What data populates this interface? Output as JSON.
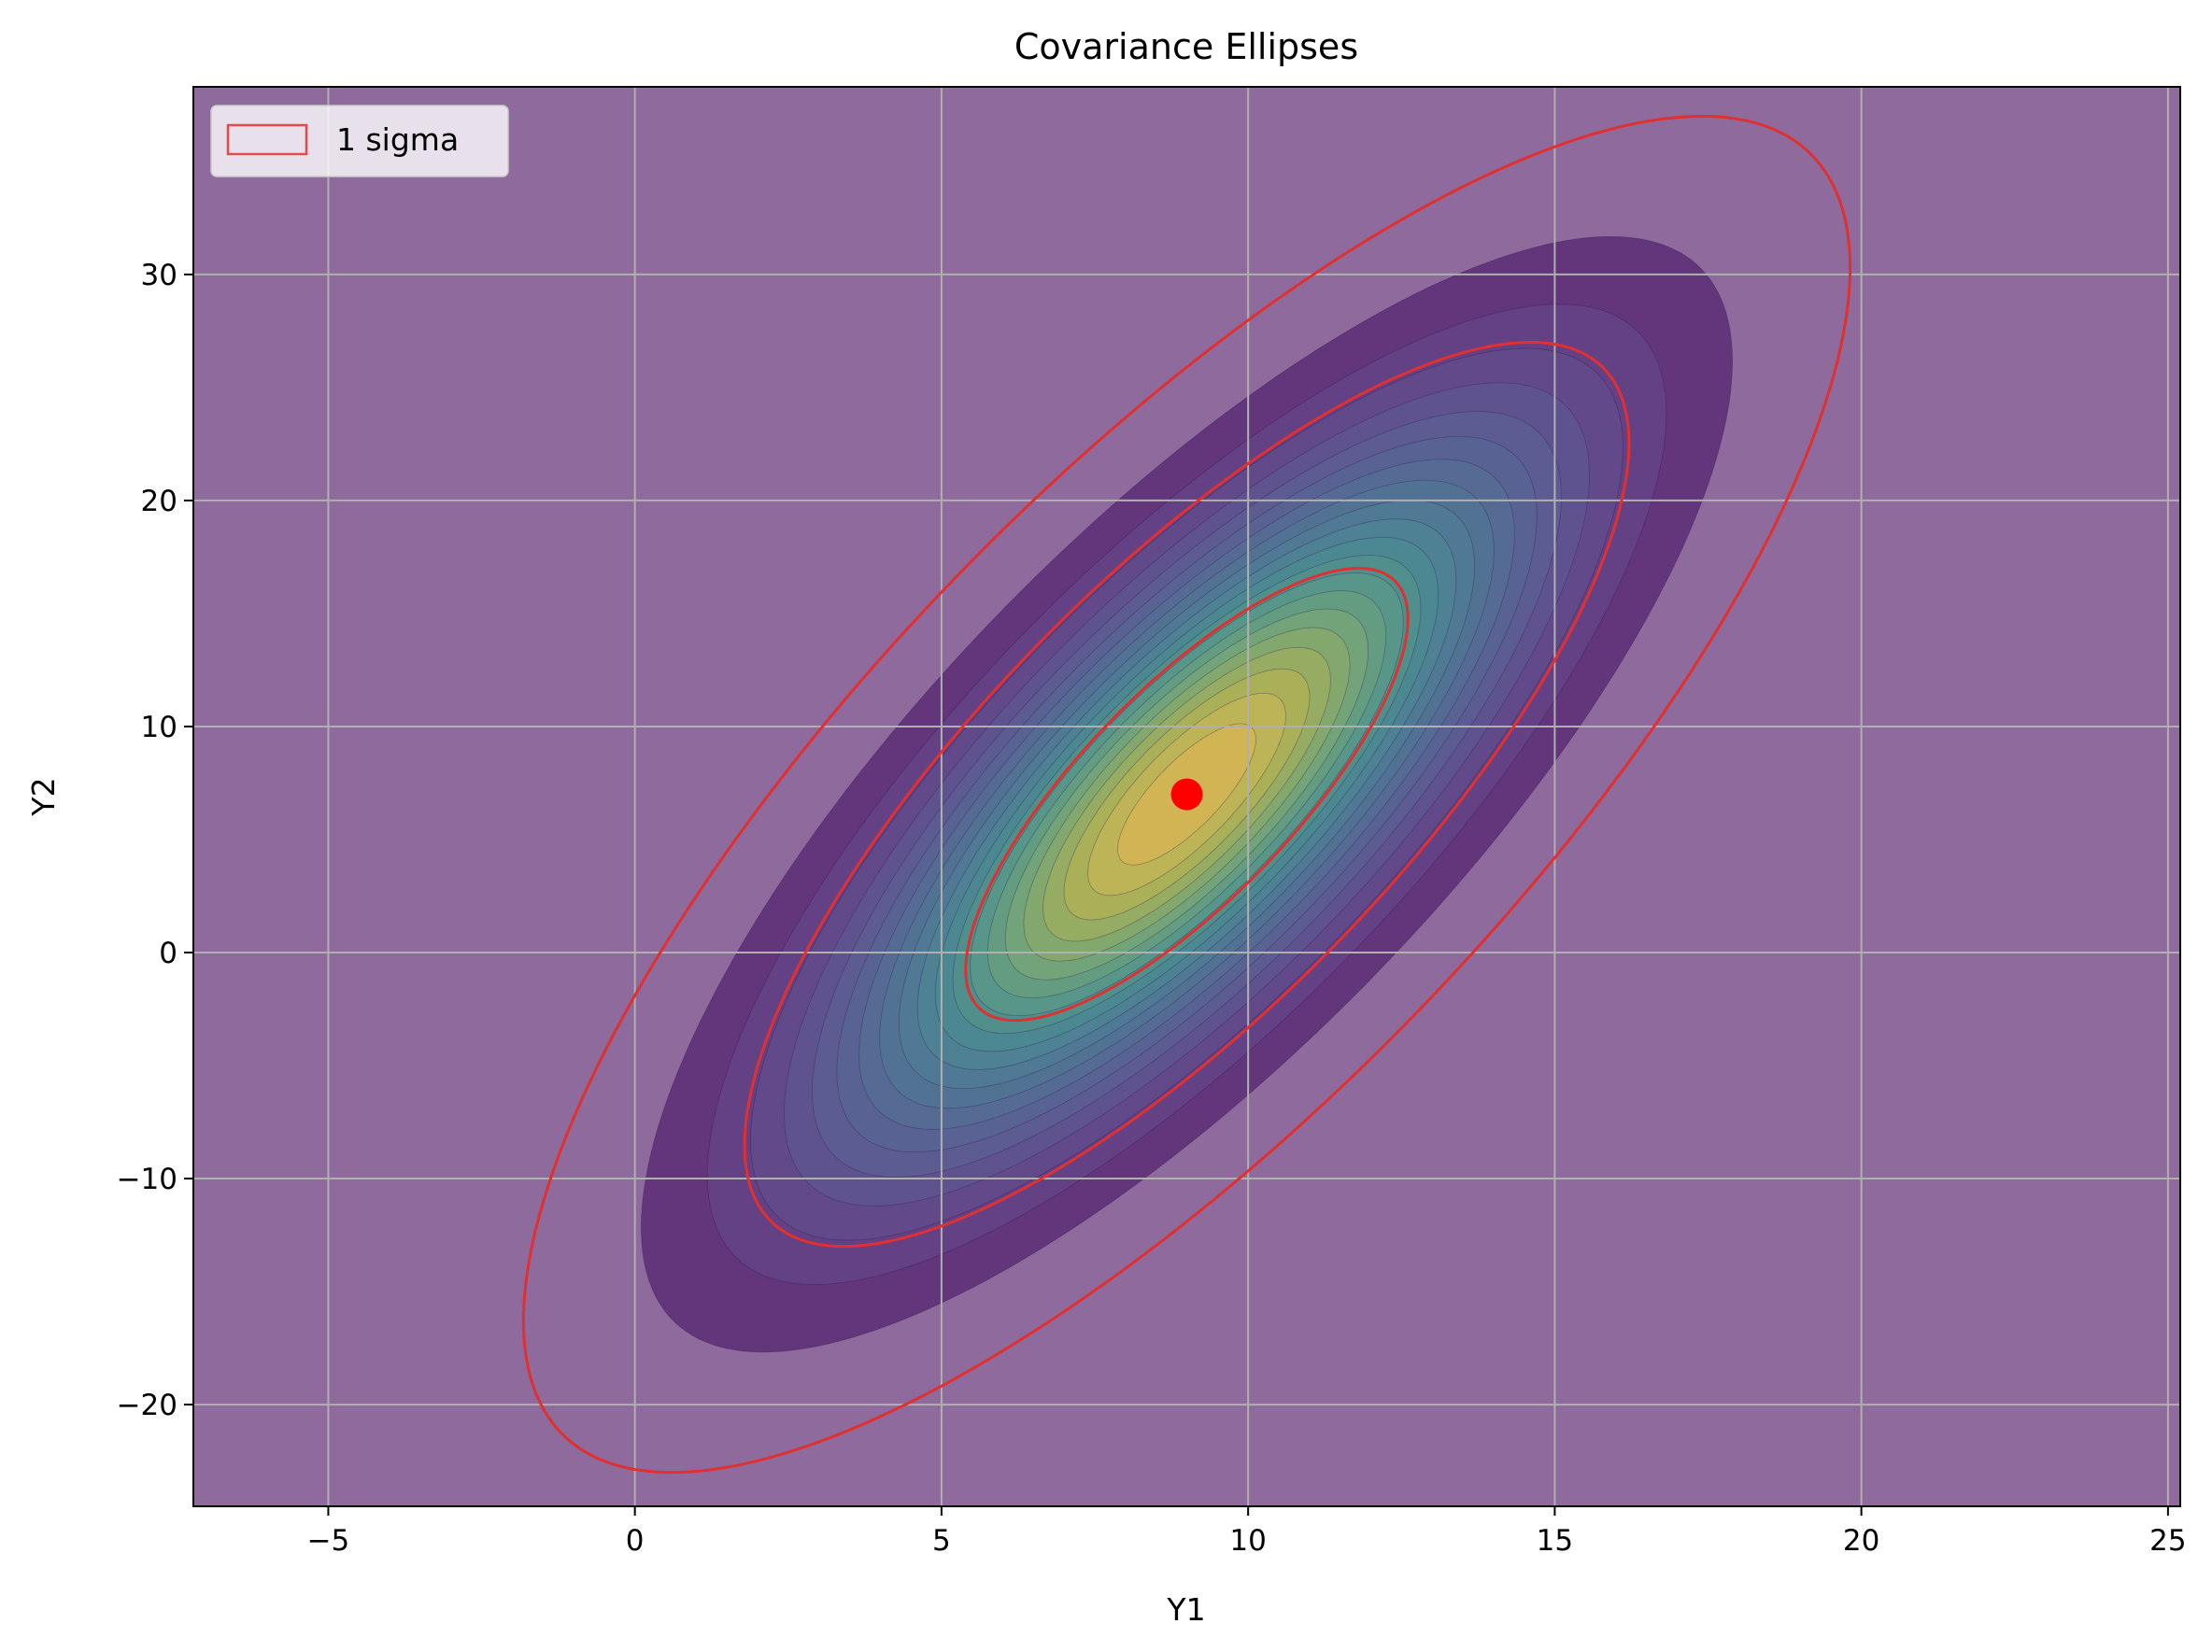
{
  "chart_data": {
    "type": "contour",
    "title": "Covariance Ellipses",
    "xlabel": "Y1",
    "ylabel": "Y2",
    "xlim": [
      -7.2,
      25.2
    ],
    "ylim": [
      -24.5,
      38.3
    ],
    "xticks": [
      -5,
      0,
      5,
      10,
      15,
      20,
      25
    ],
    "yticks": [
      -20,
      -10,
      0,
      10,
      20,
      30
    ],
    "xtick_labels": [
      "−5",
      "0",
      "5",
      "10",
      "15",
      "20",
      "25"
    ],
    "ytick_labels": [
      "−20",
      "−10",
      "0",
      "10",
      "20",
      "30"
    ],
    "grid": true,
    "mean": [
      9,
      7
    ],
    "covariance": [
      [
        13,
        28
      ],
      [
        28,
        100
      ]
    ],
    "contour_levels": 20,
    "colormap": "viridis",
    "contour_alpha": 0.6,
    "sigma_ellipses": [
      1,
      2,
      3
    ],
    "ellipse_color": "#e03030",
    "mean_marker_color": "#ff0000",
    "background_color": "#8e6a9d",
    "legend": {
      "entries": [
        {
          "label": "1 sigma",
          "color": "#e03030"
        }
      ],
      "location": "upper-left"
    }
  }
}
